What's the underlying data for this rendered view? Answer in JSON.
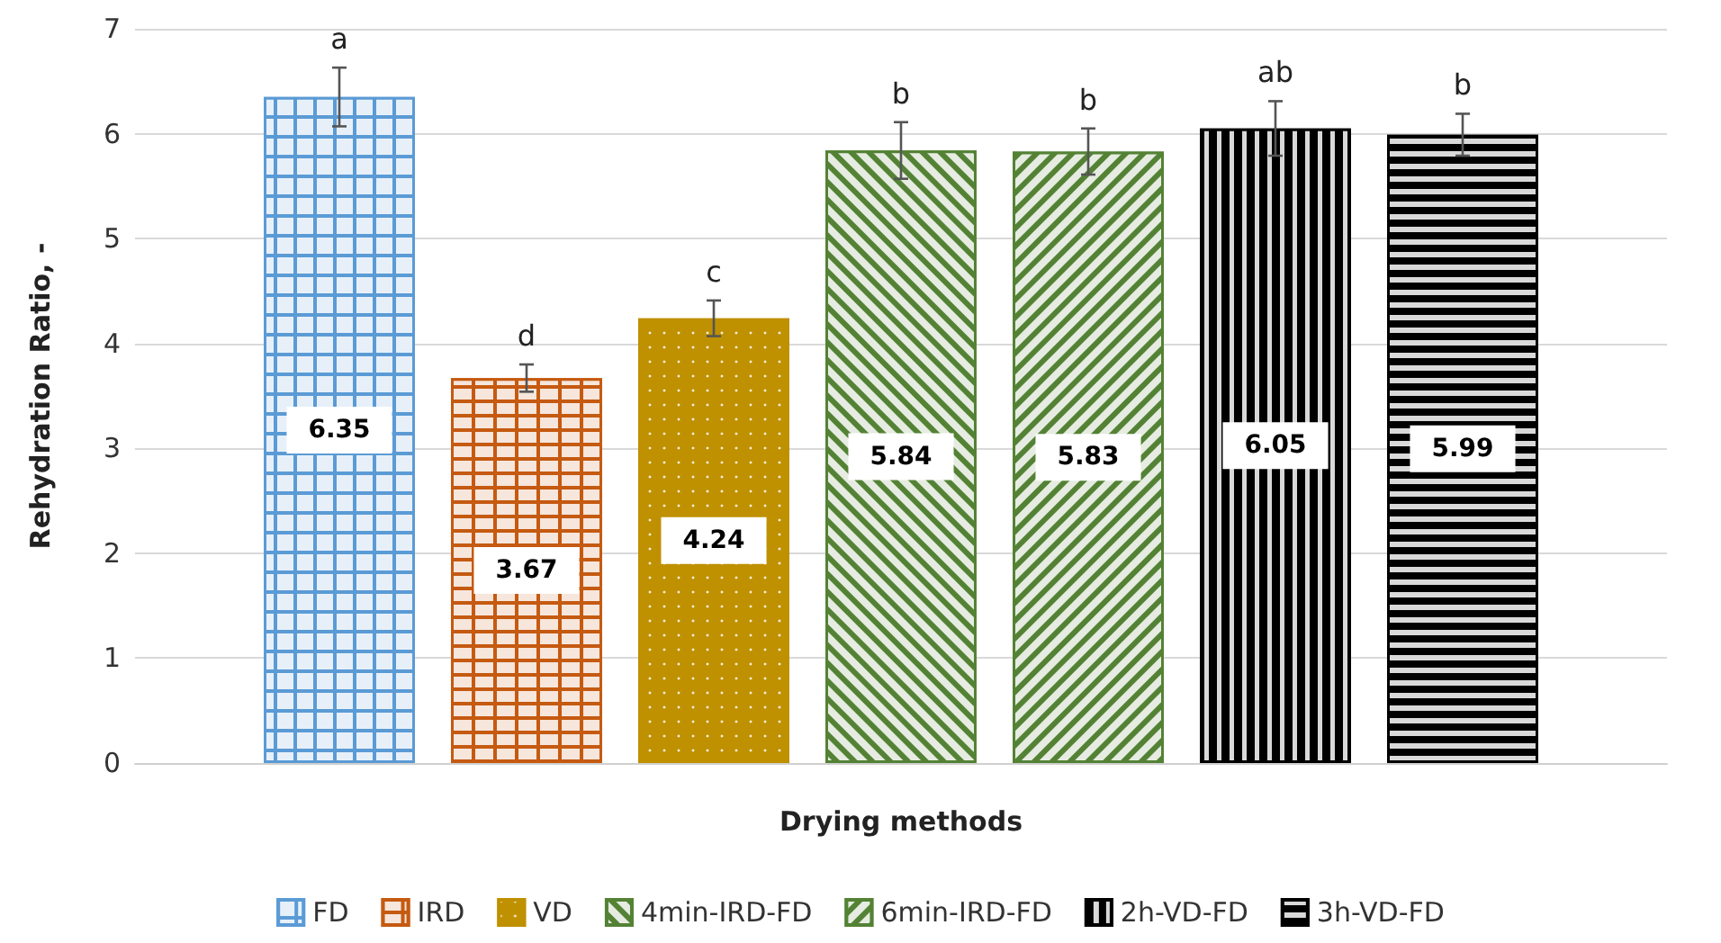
{
  "chart_data": {
    "type": "bar",
    "xlabel": "Drying methods",
    "ylabel": "Rehydration Ratio, -",
    "categories": [
      null
    ],
    "series": [
      {
        "name": "FD",
        "color": "#5b9bd5",
        "values": [
          6.35
        ],
        "errors": [
          0.28
        ]
      },
      {
        "name": "IRD",
        "color": "#c55a11",
        "values": [
          3.67
        ],
        "errors": [
          0.13
        ]
      },
      {
        "name": "VD",
        "color": "#bf9000",
        "values": [
          4.24
        ],
        "errors": [
          0.17
        ]
      },
      {
        "name": "4min-IRD-FD",
        "color": "#548235",
        "values": [
          5.84
        ],
        "errors": [
          0.27
        ]
      },
      {
        "name": "6min-IRD-FD",
        "color": "#548235",
        "values": [
          5.83
        ],
        "errors": [
          0.22
        ]
      },
      {
        "name": "2h-VD-FD",
        "color": "#000000",
        "values": [
          6.05
        ],
        "errors": [
          0.26
        ]
      },
      {
        "name": "3h-VD-FD",
        "color": "#000000",
        "values": [
          5.99
        ],
        "errors": [
          0.2
        ]
      }
    ],
    "annotations": [
      "a",
      "d",
      "c",
      "b",
      "b",
      "ab",
      "b"
    ],
    "ylim": [
      0,
      7
    ],
    "yticks": [
      0,
      1,
      2,
      3,
      4,
      5,
      6,
      7
    ],
    "grid": "y",
    "legend": "bottom",
    "data_labels": true
  }
}
